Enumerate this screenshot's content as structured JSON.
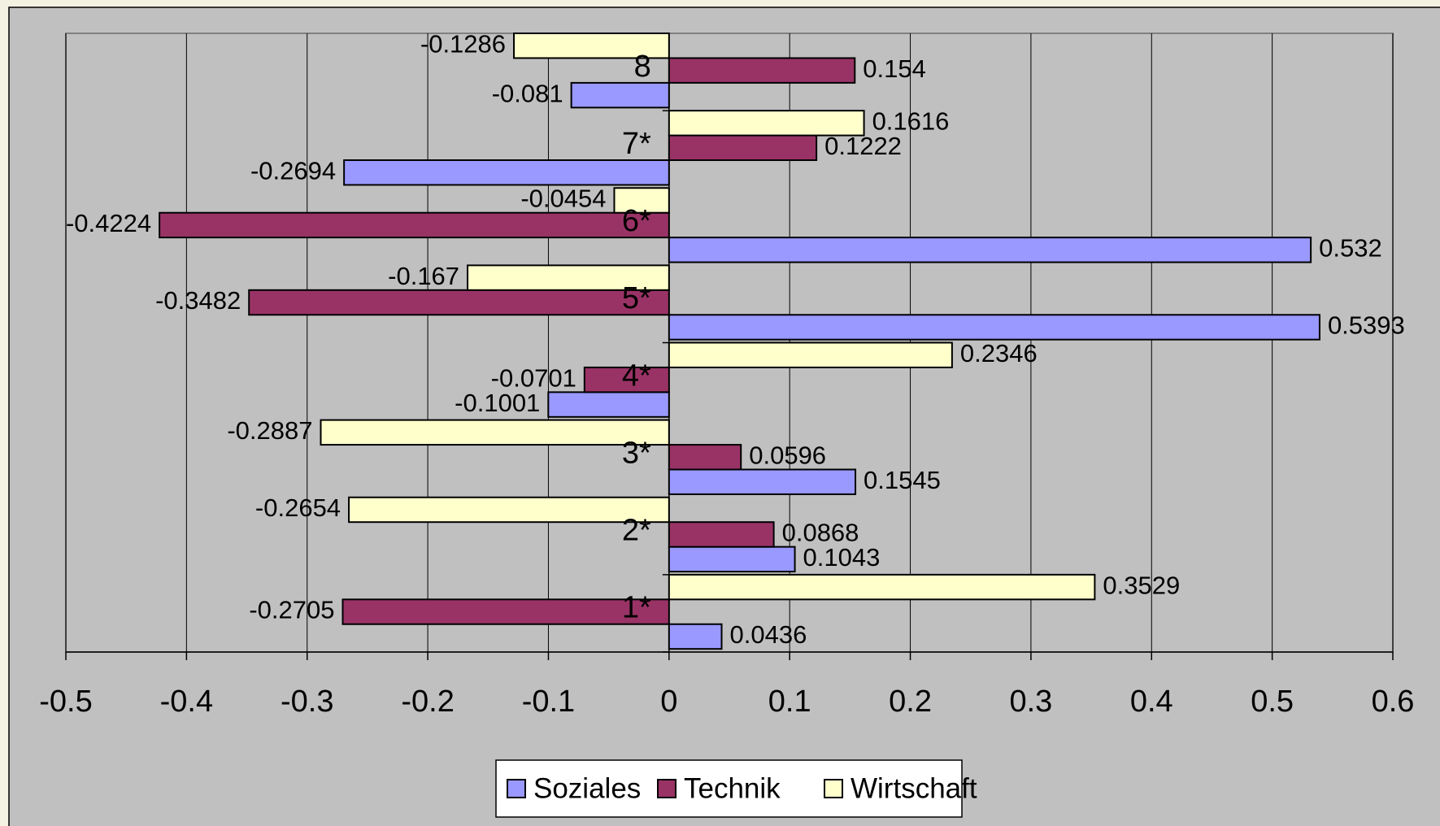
{
  "chart_data": {
    "type": "bar",
    "orientation": "horizontal",
    "categories": [
      "1*",
      "2*",
      "3*",
      "4*",
      "5*",
      "6*",
      "7*",
      "8"
    ],
    "series": [
      {
        "name": "Soziales",
        "color": "#9999ff",
        "values": [
          0.0436,
          0.1043,
          0.1545,
          -0.1001,
          0.5393,
          0.532,
          -0.2694,
          -0.081
        ]
      },
      {
        "name": "Technik",
        "color": "#993366",
        "values": [
          -0.2705,
          0.0868,
          0.0596,
          -0.0701,
          -0.3482,
          -0.4224,
          0.1222,
          0.154
        ]
      },
      {
        "name": "Wirtschaft",
        "color": "#ffffcc",
        "values": [
          0.3529,
          -0.2654,
          -0.2887,
          0.2346,
          -0.167,
          -0.0454,
          0.1616,
          -0.1286
        ]
      }
    ],
    "xlim": [
      -0.5,
      0.6
    ],
    "xticks": [
      -0.5,
      -0.4,
      -0.3,
      -0.2,
      -0.1,
      0,
      0.1,
      0.2,
      0.3,
      0.4,
      0.5,
      0.6
    ],
    "grid": true,
    "legend": "bottom"
  }
}
